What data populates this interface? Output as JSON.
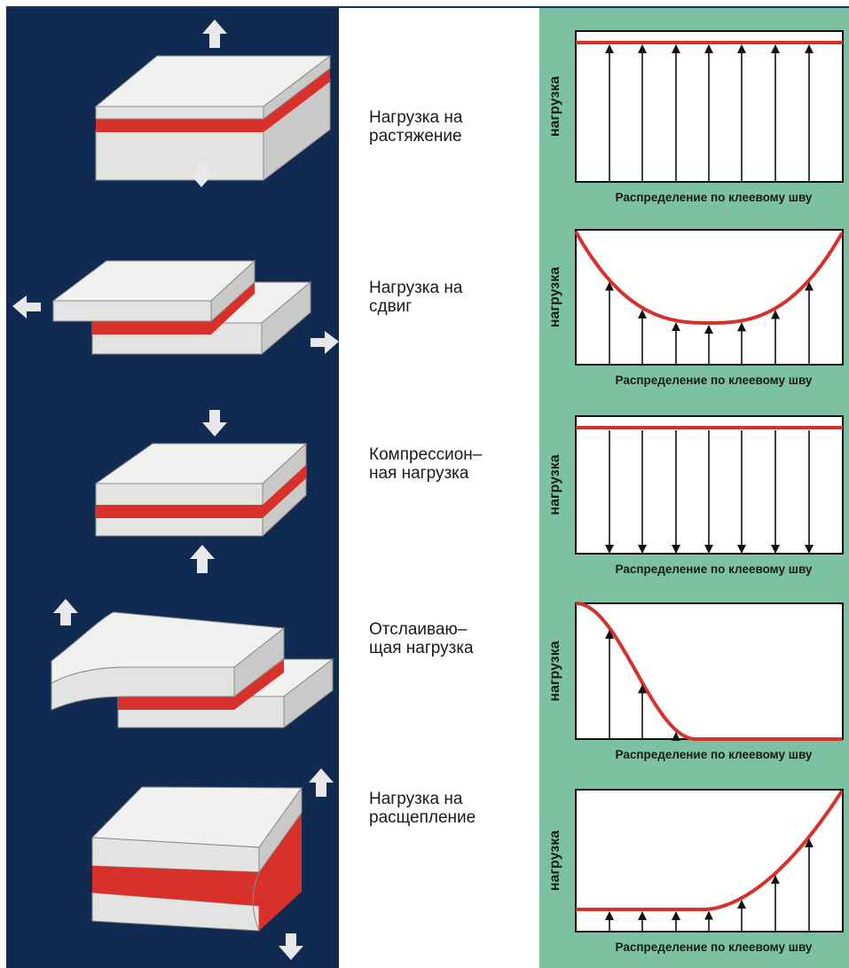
{
  "rows": [
    {
      "label_lines": [
        "Нагрузка на",
        "растяжение"
      ],
      "ylabel": "нагрузка",
      "xlabel": "Распределение по клеевому шву",
      "profile": "uniform-up"
    },
    {
      "label_lines": [
        "Нагрузка на",
        "сдвиг"
      ],
      "ylabel": "нагрузка",
      "xlabel": "Распределение по клеевому шву",
      "profile": "u-shape-up"
    },
    {
      "label_lines": [
        "Компрессион–",
        "ная нагрузка"
      ],
      "ylabel": "нагрузка",
      "xlabel": "Распределение по клеевому шву",
      "profile": "uniform-down"
    },
    {
      "label_lines": [
        "Отслаиваю–",
        "щая нагрузка"
      ],
      "ylabel": "нагрузка",
      "xlabel": "Распределение по клеевому шву",
      "profile": "decay-left"
    },
    {
      "label_lines": [
        "Нагрузка на",
        "расщепление"
      ],
      "ylabel": "нагрузка",
      "xlabel": "Распределение по клеевому шву",
      "profile": "rise-right"
    }
  ],
  "colors": {
    "left_panel": "#102a52",
    "right_panel": "#7cc2a2",
    "adhesive": "#d8302b",
    "plate": "#e3e3e1",
    "arrow": "#e8e8e8"
  }
}
